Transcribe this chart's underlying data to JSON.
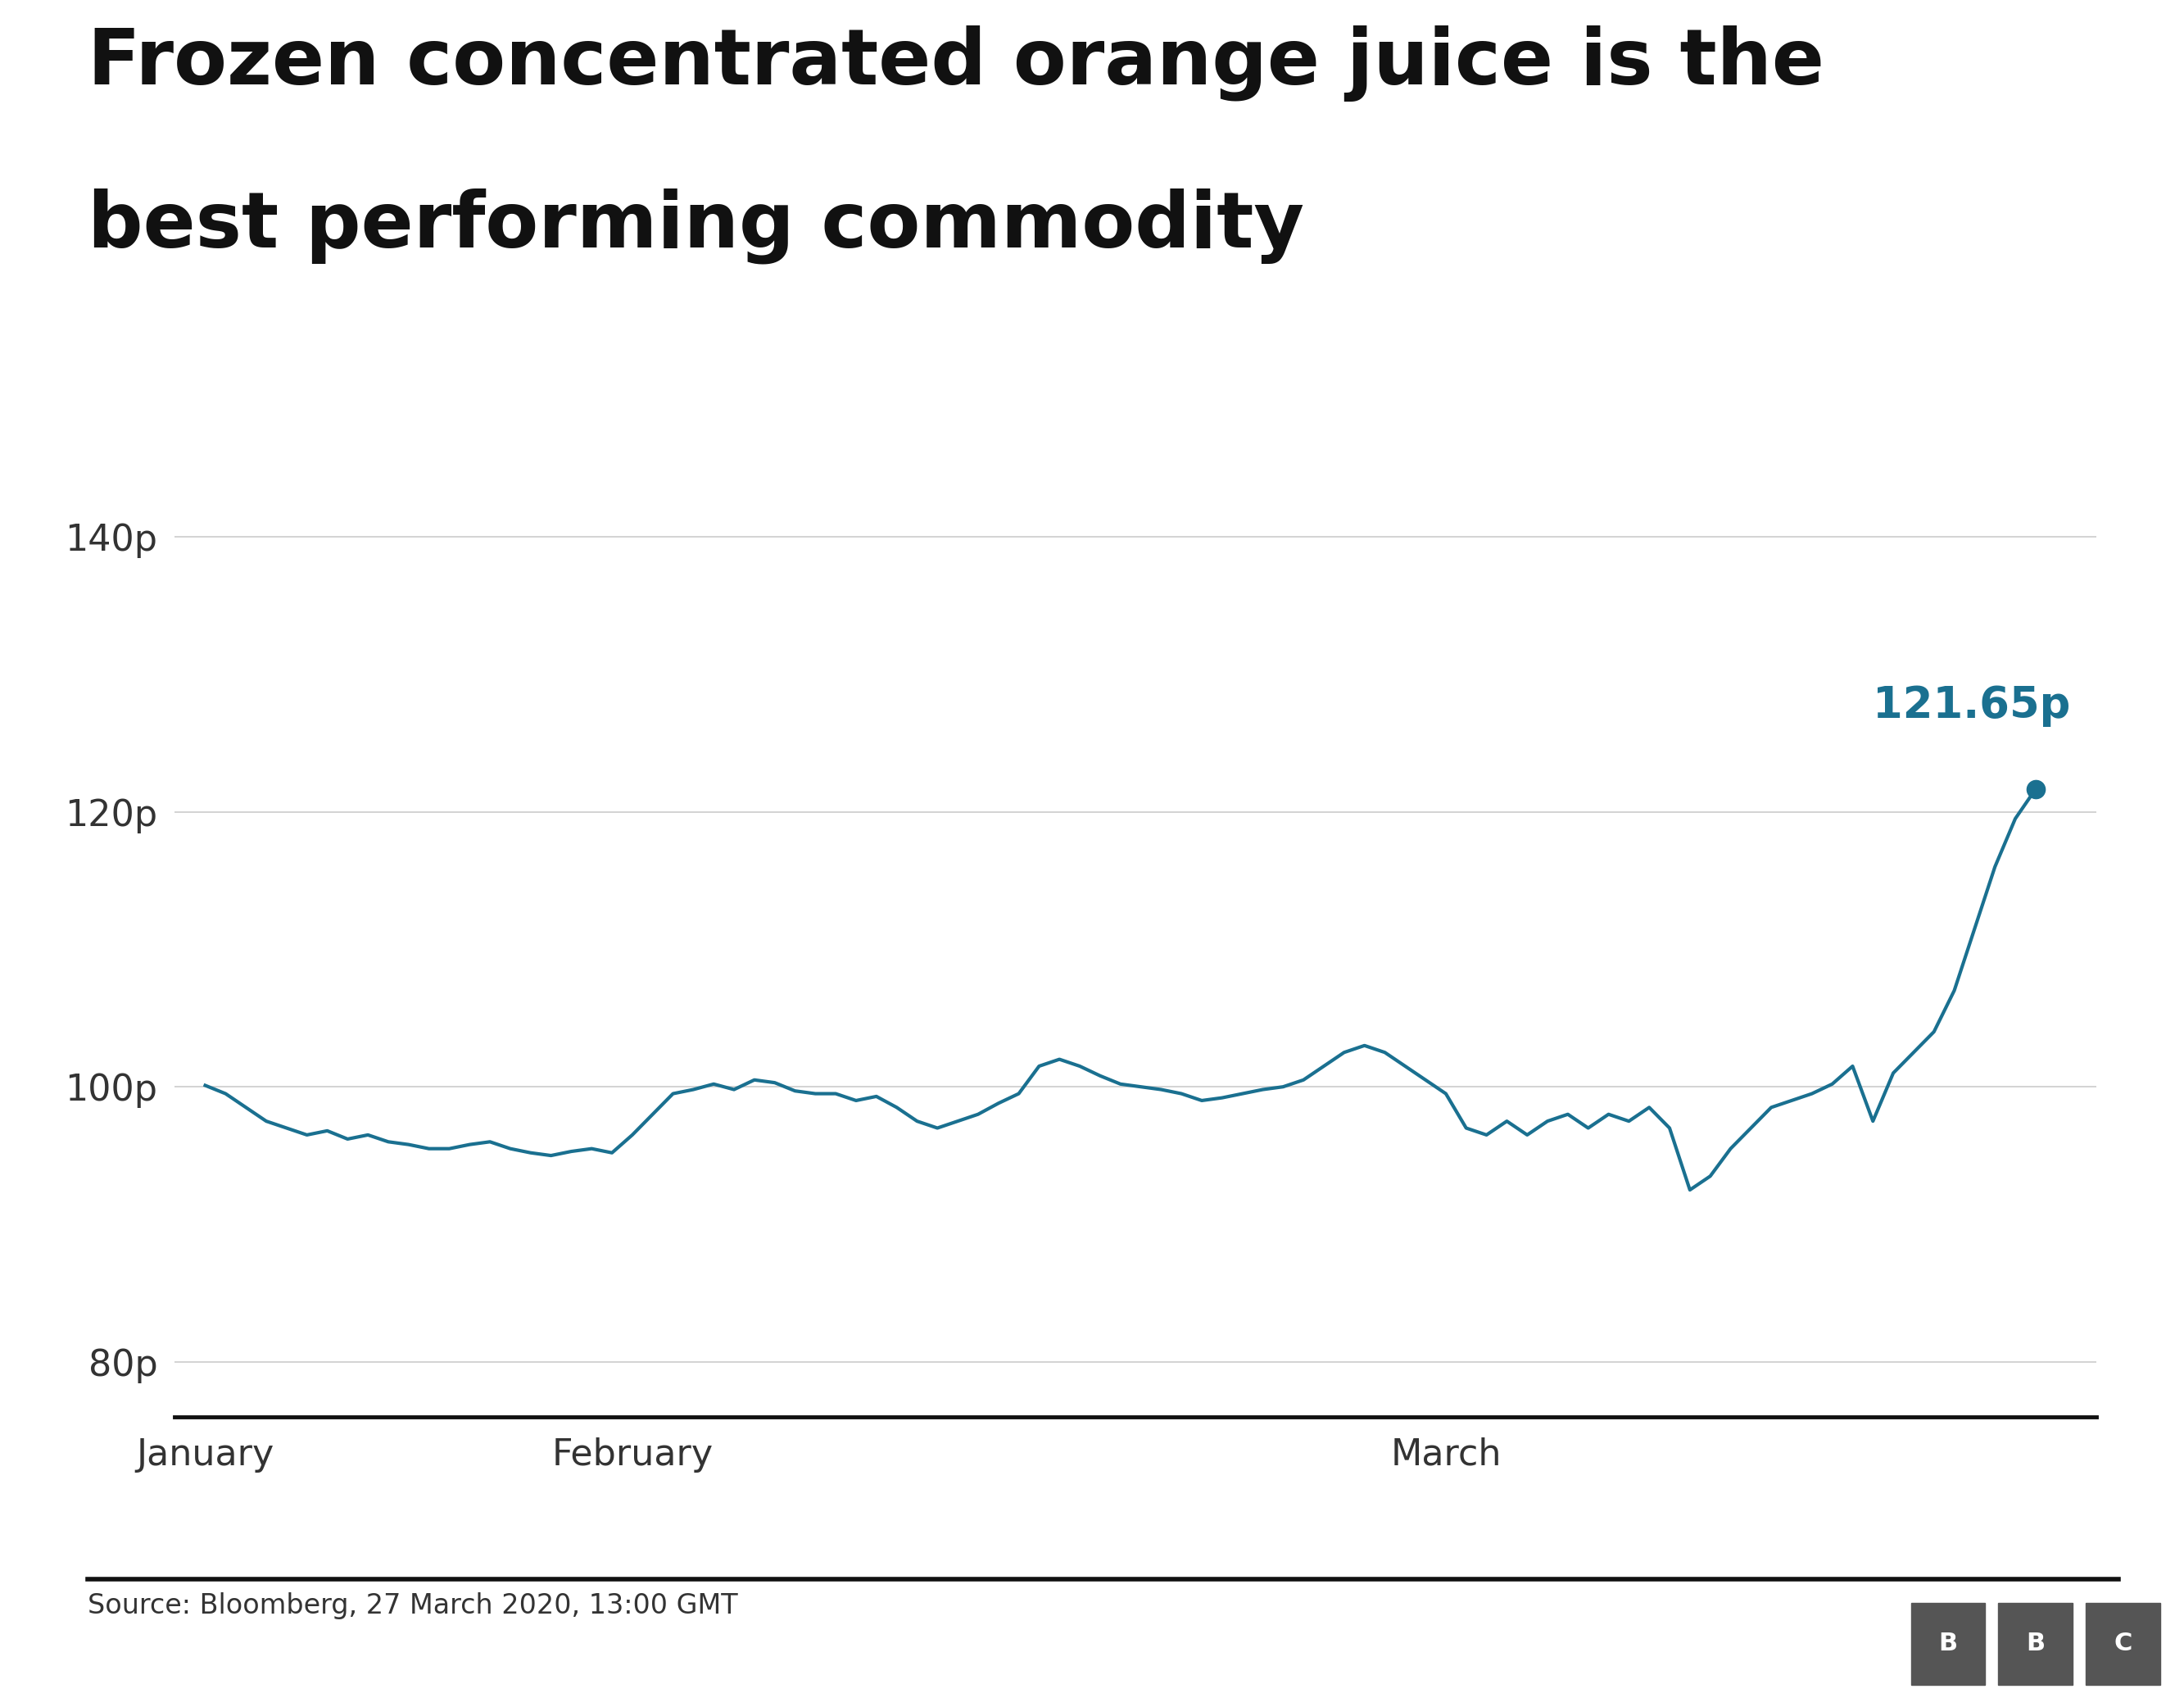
{
  "title_line1": "Frozen concentrated orange juice is the",
  "title_line2": "best performing commodity",
  "title_fontsize": 68,
  "title_fontweight": "bold",
  "line_color": "#1a7090",
  "annotation_color": "#1a7090",
  "last_value": 121.65,
  "last_label": "121.65p",
  "yticks": [
    80,
    100,
    120,
    140
  ],
  "ytick_labels": [
    "80p",
    "100p",
    "120p",
    "140p"
  ],
  "ylim": [
    76,
    148
  ],
  "xlabel_labels": [
    "January",
    "February",
    "March"
  ],
  "source_text": "Source: Bloomberg, 27 March 2020, 13:00 GMT",
  "background_color": "#ffffff",
  "line_width": 3.0,
  "grid_color": "#cccccc",
  "tick_fontsize": 32,
  "source_fontsize": 24,
  "values": [
    100.1,
    99.5,
    98.5,
    97.5,
    97.0,
    96.5,
    96.8,
    96.2,
    96.5,
    96.0,
    95.8,
    95.5,
    95.5,
    95.8,
    96.0,
    95.5,
    95.2,
    95.0,
    95.3,
    95.5,
    95.2,
    96.5,
    98.0,
    99.5,
    99.8,
    100.2,
    99.8,
    100.5,
    100.3,
    99.7,
    99.5,
    99.5,
    99.0,
    99.3,
    98.5,
    97.5,
    97.0,
    97.5,
    98.0,
    98.8,
    99.5,
    101.5,
    102.0,
    101.5,
    100.8,
    100.2,
    100.0,
    99.8,
    99.5,
    99.0,
    99.2,
    99.5,
    99.8,
    100.0,
    100.5,
    101.5,
    102.5,
    103.0,
    102.5,
    101.5,
    100.5,
    99.5,
    97.0,
    96.5,
    97.5,
    96.5,
    97.5,
    98.0,
    97.0,
    98.0,
    97.5,
    98.5,
    97.0,
    92.5,
    93.5,
    95.5,
    97.0,
    98.5,
    99.0,
    99.5,
    100.2,
    101.5,
    97.5,
    101.0,
    102.5,
    104.0,
    107.0,
    111.5,
    116.0,
    119.5,
    121.65
  ],
  "jan_tick_idx": 0,
  "feb_tick_idx": 21,
  "mar_tick_idx": 61
}
